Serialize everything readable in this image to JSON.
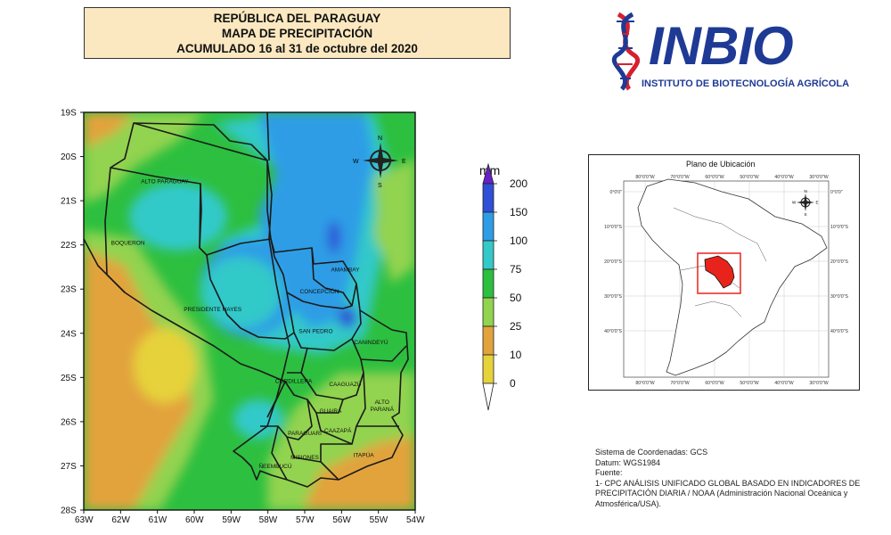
{
  "title": {
    "line1": "REPÚBLICA DEL PARAGUAY",
    "line2": "MAPA DE PRECIPITACIÓN",
    "line3": "ACUMULADO 16 al 31 de octubre del 2020"
  },
  "logo": {
    "name": "INBIO",
    "subtitle": "INSTITUTO DE BIOTECNOLOGÍA AGRÍCOLA",
    "icon": "dna-helix-icon",
    "colors": {
      "blue": "#1e3a95",
      "red": "#d42030"
    }
  },
  "main_map": {
    "lat_labels": [
      "19S",
      "20S",
      "21S",
      "22S",
      "23S",
      "24S",
      "25S",
      "26S",
      "27S",
      "28S"
    ],
    "lon_labels": [
      "63W",
      "62W",
      "61W",
      "60W",
      "59W",
      "58W",
      "57W",
      "56W",
      "55W",
      "54W"
    ],
    "north_arrow": {
      "n": "N",
      "s": "S",
      "e": "E",
      "w": "W"
    },
    "departments": [
      {
        "name": "ALTO PARAGUAY",
        "lon": -60.8,
        "lat": -20.6
      },
      {
        "name": "BOQUERON",
        "lon": -61.8,
        "lat": -22.0
      },
      {
        "name": "PRESIDENTE HAYES",
        "lon": -59.5,
        "lat": -23.5
      },
      {
        "name": "CONCEPCIÓN",
        "lon": -56.6,
        "lat": -23.1
      },
      {
        "name": "AMAMBAY",
        "lon": -55.9,
        "lat": -22.6
      },
      {
        "name": "SAN PEDRO",
        "lon": -56.7,
        "lat": -23.99
      },
      {
        "name": "CANINDEYÚ",
        "lon": -55.2,
        "lat": -24.25
      },
      {
        "name": "CORDILLERA",
        "lon": -57.3,
        "lat": -25.12
      },
      {
        "name": "CAAGUAZÚ",
        "lon": -55.9,
        "lat": -25.2
      },
      {
        "name": "ALTO",
        "lon": -54.9,
        "lat": -25.6
      },
      {
        "name": "PARANÁ",
        "lon": -54.9,
        "lat": -25.76
      },
      {
        "name": "GUAIRÁ",
        "lon": -56.3,
        "lat": -25.8
      },
      {
        "name": "PARAGUARÍ",
        "lon": -57.0,
        "lat": -26.3
      },
      {
        "name": "CAAZAPÁ",
        "lon": -56.1,
        "lat": -26.24
      },
      {
        "name": "MISIONES",
        "lon": -57.0,
        "lat": -26.85
      },
      {
        "name": "ITAPÚA",
        "lon": -55.4,
        "lat": -26.8
      },
      {
        "name": "ÑEEMBUCÚ",
        "lon": -57.8,
        "lat": -27.05
      }
    ]
  },
  "legend": {
    "unit": "mm",
    "ticks": [
      "200",
      "150",
      "100",
      "75",
      "50",
      "25",
      "10",
      "0"
    ],
    "colors": [
      "#6a1fc8",
      "#2f4fd6",
      "#2e9de6",
      "#33c9c9",
      "#2dbf3f",
      "#92d34f",
      "#e2a33c",
      "#e6d23a"
    ]
  },
  "locator": {
    "title": "Plano de Ubicación",
    "lon_labels": [
      "80°0'0\"W",
      "70°0'0\"W",
      "60°0'0\"W",
      "50°0'0\"W",
      "40°0'0\"W",
      "30°0'0\"W"
    ],
    "lat_labels": [
      "0°0'0\"",
      "10°0'0\"S",
      "20°0'0\"S",
      "30°0'0\"S",
      "40°0'0\"S"
    ],
    "north_arrow": {
      "n": "N",
      "s": "S",
      "e": "E",
      "w": "W"
    },
    "highlight_color": "#e8231b"
  },
  "notes": {
    "line1": "Sistema de Coordenadas: GCS",
    "line2": "Datum: WGS1984",
    "line3": "Fuente:",
    "line4": "1- CPC ANÁLISIS UNIFICADO GLOBAL BASADO EN INDICADORES DE PRECIPITACIÓN DIARIA / NOAA (Administración Nacional Oceánica y Atmosférica/USA)."
  }
}
